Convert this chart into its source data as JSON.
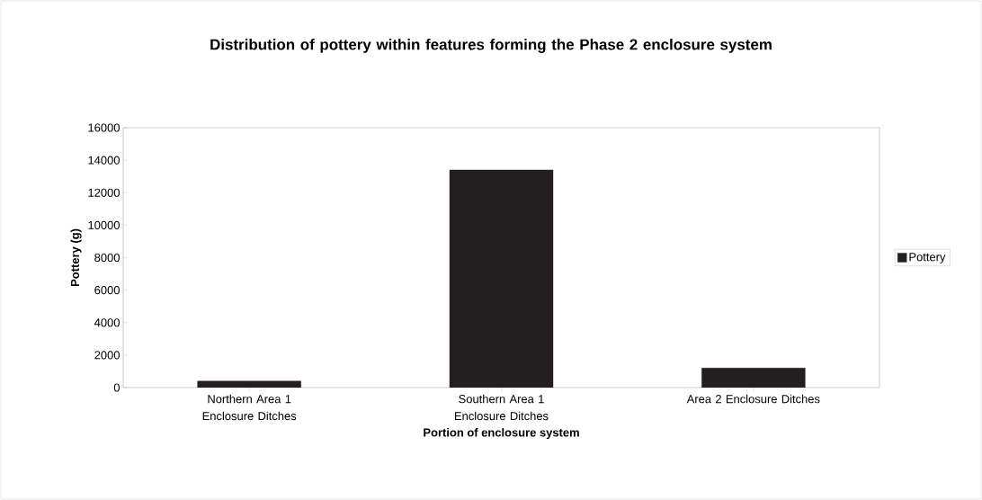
{
  "chart_data": {
    "type": "bar",
    "title": "Distribution of pottery within features forming the Phase 2 enclosure system",
    "xlabel": "Portion of enclosure system",
    "ylabel": "Pottery (g)",
    "categories": [
      "Northern Area 1 Enclosure Ditches",
      "Southern Area 1 Enclosure Ditches",
      "Area 2 Enclosure Ditches"
    ],
    "series": [
      {
        "name": "Pottery",
        "color": "#231f20",
        "values": [
          400,
          13400,
          1200
        ]
      }
    ],
    "ylim": [
      0,
      16000
    ],
    "yticks": [
      0,
      2000,
      4000,
      6000,
      8000,
      10000,
      12000,
      14000,
      16000
    ],
    "legend": "right",
    "grid": false
  }
}
